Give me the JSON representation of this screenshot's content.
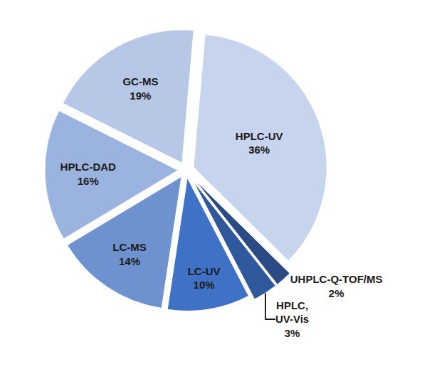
{
  "chart_data": {
    "type": "pie",
    "categories": [
      "HPLC-UV",
      "UHPLC-Q-TOF/MS",
      "HPLC, UV-Vis",
      "LC-UV",
      "LC-MS",
      "HPLC-DAD",
      "GC-MS"
    ],
    "values": [
      36,
      2,
      3,
      10,
      14,
      16,
      19
    ],
    "value_labels": [
      "36%",
      "2%",
      "3%",
      "10%",
      "14%",
      "16%",
      "19%"
    ],
    "colors": [
      "#c6d4ed",
      "#2b4b85",
      "#30589c",
      "#3f72c6",
      "#6e91d0",
      "#9bb3df",
      "#b7c8e6"
    ],
    "data_labels": true
  }
}
